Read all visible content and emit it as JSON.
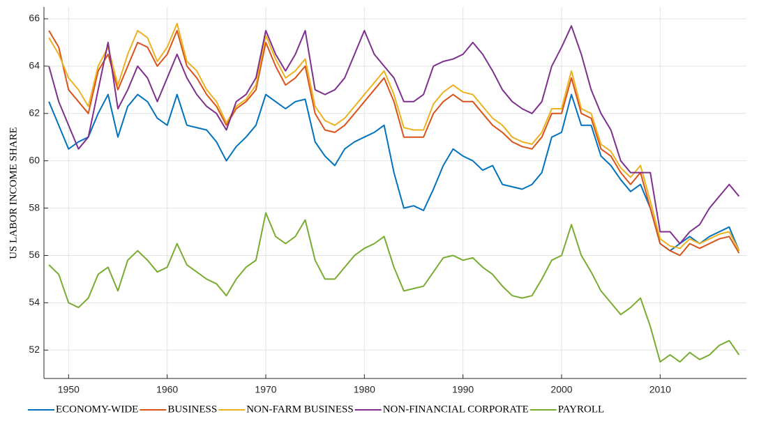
{
  "chart_data": {
    "type": "line",
    "ylabel": "US LABOR INCOME SHARE",
    "x": [
      1948,
      1949,
      1950,
      1951,
      1952,
      1953,
      1954,
      1955,
      1956,
      1957,
      1958,
      1959,
      1960,
      1961,
      1962,
      1963,
      1964,
      1965,
      1966,
      1967,
      1968,
      1969,
      1970,
      1971,
      1972,
      1973,
      1974,
      1975,
      1976,
      1977,
      1978,
      1979,
      1980,
      1981,
      1982,
      1983,
      1984,
      1985,
      1986,
      1987,
      1988,
      1989,
      1990,
      1991,
      1992,
      1993,
      1994,
      1995,
      1996,
      1997,
      1998,
      1999,
      2000,
      2001,
      2002,
      2003,
      2004,
      2005,
      2006,
      2007,
      2008,
      2009,
      2010,
      2011,
      2012,
      2013,
      2014,
      2015,
      2016,
      2017,
      2018
    ],
    "series": [
      {
        "name": "ECONOMY-WIDE",
        "color": "#0072BD",
        "values": [
          62.5,
          61.5,
          60.5,
          60.8,
          61.0,
          62.0,
          62.8,
          61.0,
          62.3,
          62.8,
          62.5,
          61.8,
          61.5,
          62.8,
          61.5,
          61.4,
          61.3,
          60.8,
          60.0,
          60.6,
          61.0,
          61.5,
          62.8,
          62.5,
          62.2,
          62.5,
          62.6,
          60.8,
          60.2,
          59.8,
          60.5,
          60.8,
          61.0,
          61.2,
          61.5,
          59.5,
          58.0,
          58.1,
          57.9,
          58.8,
          59.8,
          60.5,
          60.2,
          60.0,
          59.6,
          59.8,
          59.0,
          58.9,
          58.8,
          59.0,
          59.5,
          61.0,
          61.2,
          62.8,
          61.5,
          61.5,
          60.2,
          59.8,
          59.2,
          58.7,
          59.0,
          58.0,
          56.5,
          56.2,
          56.5,
          56.8,
          56.5,
          56.8,
          57.0,
          57.2,
          56.2
        ]
      },
      {
        "name": "BUSINESS",
        "color": "#D95319",
        "values": [
          65.5,
          64.8,
          63.0,
          62.5,
          62.0,
          63.8,
          64.5,
          63.0,
          64.0,
          65.0,
          64.8,
          64.0,
          64.5,
          65.5,
          64.0,
          63.5,
          62.8,
          62.3,
          61.5,
          62.2,
          62.5,
          63.0,
          65.0,
          64.0,
          63.2,
          63.5,
          64.0,
          62.0,
          61.3,
          61.2,
          61.5,
          62.0,
          62.5,
          63.0,
          63.5,
          62.5,
          61.0,
          61.0,
          61.0,
          62.0,
          62.5,
          62.8,
          62.5,
          62.5,
          62.0,
          61.5,
          61.2,
          60.8,
          60.6,
          60.5,
          61.0,
          62.0,
          62.0,
          63.5,
          62.0,
          61.8,
          60.5,
          60.2,
          59.5,
          59.0,
          59.5,
          58.0,
          56.5,
          56.2,
          56.0,
          56.5,
          56.3,
          56.5,
          56.7,
          56.8,
          56.1
        ]
      },
      {
        "name": "NON-FARM BUSINESS",
        "color": "#EDB120",
        "values": [
          65.2,
          64.5,
          63.5,
          63.0,
          62.3,
          64.0,
          64.8,
          63.2,
          64.5,
          65.5,
          65.2,
          64.2,
          64.8,
          65.8,
          64.2,
          63.8,
          63.0,
          62.5,
          61.6,
          62.3,
          62.6,
          63.2,
          65.3,
          64.3,
          63.5,
          63.8,
          64.3,
          62.3,
          61.7,
          61.5,
          61.8,
          62.3,
          62.8,
          63.3,
          63.8,
          62.8,
          61.4,
          61.3,
          61.3,
          62.4,
          62.9,
          63.2,
          62.9,
          62.8,
          62.3,
          61.8,
          61.5,
          61.0,
          60.8,
          60.7,
          61.2,
          62.2,
          62.2,
          63.8,
          62.2,
          62.0,
          60.7,
          60.4,
          59.7,
          59.3,
          59.8,
          58.3,
          56.7,
          56.4,
          56.3,
          56.7,
          56.5,
          56.7,
          56.9,
          57.0,
          56.2
        ]
      },
      {
        "name": "NON-FINANCIAL CORPORATE",
        "color": "#7E2F8E",
        "values": [
          64.0,
          62.5,
          61.5,
          60.5,
          61.0,
          63.0,
          65.0,
          62.2,
          63.0,
          64.0,
          63.5,
          62.5,
          63.5,
          64.5,
          63.5,
          62.8,
          62.3,
          62.0,
          61.3,
          62.5,
          62.8,
          63.5,
          65.5,
          64.5,
          63.8,
          64.5,
          65.5,
          63.0,
          62.8,
          63.0,
          63.5,
          64.5,
          65.5,
          64.5,
          64.0,
          63.5,
          62.5,
          62.5,
          62.8,
          64.0,
          64.2,
          64.3,
          64.5,
          65.0,
          64.5,
          63.8,
          63.0,
          62.5,
          62.2,
          62.0,
          62.5,
          64.0,
          64.8,
          65.7,
          64.5,
          63.0,
          62.0,
          61.3,
          60.0,
          59.5,
          59.5,
          59.5,
          57.0,
          57.0,
          56.5,
          57.0,
          57.3,
          58.0,
          58.5,
          59.0,
          58.5
        ]
      },
      {
        "name": "PAYROLL",
        "color": "#77AC30",
        "values": [
          55.6,
          55.2,
          54.0,
          53.8,
          54.2,
          55.2,
          55.5,
          54.5,
          55.8,
          56.2,
          55.8,
          55.3,
          55.5,
          56.5,
          55.6,
          55.3,
          55.0,
          54.8,
          54.3,
          55.0,
          55.5,
          55.8,
          57.8,
          56.8,
          56.5,
          56.8,
          57.5,
          55.8,
          55.0,
          55.0,
          55.5,
          56.0,
          56.3,
          56.5,
          56.8,
          55.5,
          54.5,
          54.6,
          54.7,
          55.3,
          55.9,
          56.0,
          55.8,
          55.9,
          55.5,
          55.2,
          54.7,
          54.3,
          54.2,
          54.3,
          55.0,
          55.8,
          56.0,
          57.3,
          56.0,
          55.3,
          54.5,
          54.0,
          53.5,
          53.8,
          54.2,
          53.0,
          51.5,
          51.8,
          51.5,
          51.9,
          51.6,
          51.8,
          52.2,
          52.4,
          51.8
        ]
      }
    ],
    "xlim": [
      1947.5,
      2018.75
    ],
    "xticks": [
      1950,
      1960,
      1970,
      1980,
      1990,
      2000,
      2010
    ],
    "ylim": [
      50.8,
      66.5
    ],
    "yticks": [
      52,
      54,
      56,
      58,
      60,
      62,
      64,
      66
    ],
    "grid": true,
    "legend": "bottom"
  }
}
